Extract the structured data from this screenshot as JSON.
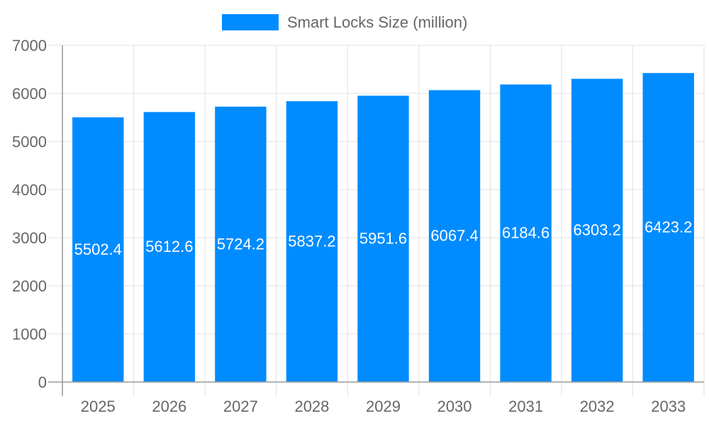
{
  "chart_data": {
    "type": "bar",
    "title": "",
    "xlabel": "",
    "ylabel": "",
    "categories": [
      "2025",
      "2026",
      "2027",
      "2028",
      "2029",
      "2030",
      "2031",
      "2032",
      "2033"
    ],
    "series": [
      {
        "name": "Smart Locks Size (million)",
        "values": [
          5502.4,
          5612.6,
          5724.2,
          5837.2,
          5951.6,
          6067.4,
          6184.6,
          6303.2,
          6423.2
        ],
        "color": "#008cff"
      }
    ],
    "ylim": [
      0,
      7000
    ],
    "yticks": [
      0,
      1000,
      2000,
      3000,
      4000,
      5000,
      6000,
      7000
    ],
    "grid": true,
    "legend": "top-center",
    "data_labels": true,
    "data_label_color": "#ffffff"
  }
}
